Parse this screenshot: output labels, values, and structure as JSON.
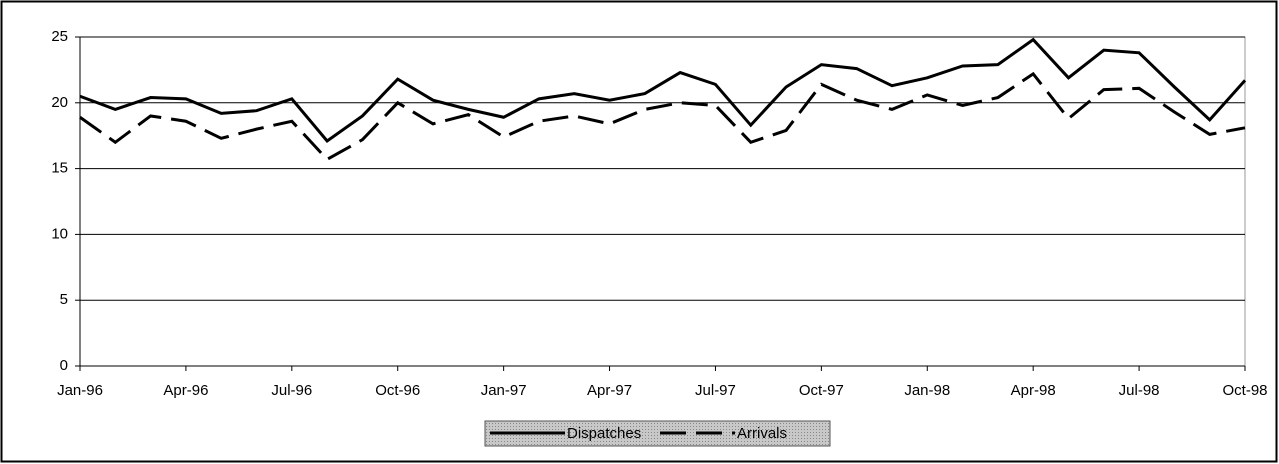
{
  "chart_data": {
    "type": "line",
    "categories": [
      "Jan-96",
      null,
      null,
      "Apr-96",
      null,
      null,
      "Jul-96",
      null,
      null,
      "Oct-96",
      null,
      null,
      "Jan-97",
      null,
      null,
      "Apr-97",
      null,
      null,
      "Jul-97",
      null,
      null,
      "Oct-97",
      null,
      null,
      "Jan-98",
      null,
      null,
      "Apr-98",
      null,
      null,
      "Jul-98",
      null,
      null,
      "Oct-98"
    ],
    "series": [
      {
        "name": "Dispatches",
        "color": "#000000",
        "dash": false,
        "values": [
          20.5,
          19.5,
          20.4,
          20.3,
          19.2,
          19.4,
          20.3,
          17.1,
          19.0,
          21.8,
          20.2,
          19.5,
          18.9,
          20.3,
          20.7,
          20.2,
          20.7,
          22.3,
          21.4,
          18.3,
          21.2,
          22.9,
          22.6,
          21.3,
          21.9,
          22.8,
          22.9,
          24.8,
          21.9,
          24.0,
          23.8,
          21.2,
          18.7,
          21.7
        ]
      },
      {
        "name": "Arrivals",
        "color": "#000000",
        "dash": true,
        "values": [
          18.9,
          17.0,
          19.0,
          18.6,
          17.3,
          18.0,
          18.6,
          15.7,
          17.2,
          20.0,
          18.4,
          19.1,
          17.4,
          18.6,
          19.0,
          18.4,
          19.5,
          20.0,
          19.8,
          17.0,
          17.9,
          21.4,
          20.2,
          19.5,
          20.6,
          19.8,
          20.4,
          22.2,
          18.8,
          21.0,
          21.1,
          19.3,
          17.6,
          18.1
        ]
      }
    ],
    "ylim": [
      0,
      25
    ],
    "yticks": [
      0,
      5,
      10,
      15,
      20,
      25
    ],
    "grid": true,
    "legend": "bottom"
  }
}
